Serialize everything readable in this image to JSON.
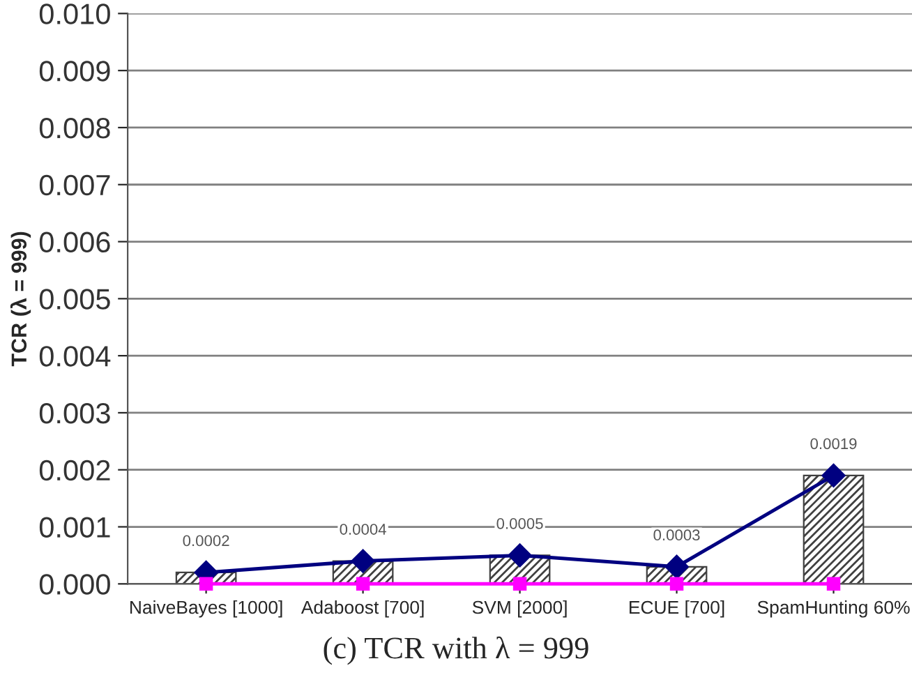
{
  "chart_data": {
    "type": "bar",
    "title": "(c) TCR with λ = 999",
    "ylabel": "TCR (λ = 999)",
    "categories": [
      "NaiveBayes [1000]",
      "Adaboost [700]",
      "SVM [2000]",
      "ECUE [700]",
      "SpamHunting 60%"
    ],
    "series": [
      {
        "color": "#404040",
        "values": [
          0.0002,
          0.0004,
          0.0005,
          0.0003,
          0.0019
        ]
      },
      {
        "type": "line",
        "color": "#000080",
        "marker": "diamond",
        "values": [
          0.0002,
          0.0004,
          0.0005,
          0.0003,
          0.0019
        ],
        "value_labels": [
          "0.0002",
          "0.0004",
          "0.0005",
          "0.0003",
          "0.0019"
        ]
      },
      {
        "type": "line",
        "color": "#ff00ff",
        "marker": "square",
        "values": [
          0,
          0,
          0,
          0,
          0
        ]
      }
    ],
    "ylim": [
      0,
      0.01
    ],
    "yticks": [
      {
        "value": 0,
        "label": "0.000"
      },
      {
        "value": 0.001,
        "label": "0.001"
      },
      {
        "value": 0.002,
        "label": "0.002"
      },
      {
        "value": 0.003,
        "label": "0.003"
      },
      {
        "value": 0.004,
        "label": "0.004"
      },
      {
        "value": 0.005,
        "label": "0.005"
      },
      {
        "value": 0.006,
        "label": "0.006"
      },
      {
        "value": 0.007,
        "label": "0.007"
      },
      {
        "value": 0.008,
        "label": "0.008"
      },
      {
        "value": 0.009,
        "label": "0.009"
      },
      {
        "value": 0.01,
        "label": "0.010"
      }
    ],
    "grid": "y"
  }
}
